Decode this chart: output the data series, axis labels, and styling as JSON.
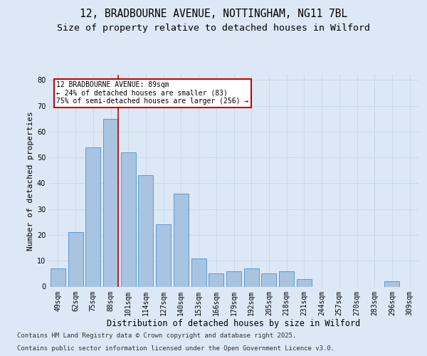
{
  "title_line1": "12, BRADBOURNE AVENUE, NOTTINGHAM, NG11 7BL",
  "title_line2": "Size of property relative to detached houses in Wilford",
  "xlabel": "Distribution of detached houses by size in Wilford",
  "ylabel": "Number of detached properties",
  "categories": [
    "49sqm",
    "62sqm",
    "75sqm",
    "88sqm",
    "101sqm",
    "114sqm",
    "127sqm",
    "140sqm",
    "153sqm",
    "166sqm",
    "179sqm",
    "192sqm",
    "205sqm",
    "218sqm",
    "231sqm",
    "244sqm",
    "257sqm",
    "270sqm",
    "283sqm",
    "296sqm",
    "309sqm"
  ],
  "values": [
    7,
    21,
    54,
    65,
    52,
    43,
    24,
    36,
    11,
    5,
    6,
    7,
    5,
    6,
    3,
    0,
    0,
    0,
    0,
    2,
    0
  ],
  "bar_color": "#a8c4e0",
  "bar_edge_color": "#5b9bd5",
  "annotation_line1": "12 BRADBOURNE AVENUE: 89sqm",
  "annotation_line2": "← 24% of detached houses are smaller (83)",
  "annotation_line3": "75% of semi-detached houses are larger (256) →",
  "annotation_box_color": "#ffffff",
  "annotation_box_edge_color": "#cc0000",
  "red_line_color": "#cc0000",
  "ylim": [
    0,
    82
  ],
  "yticks": [
    0,
    10,
    20,
    30,
    40,
    50,
    60,
    70,
    80
  ],
  "grid_color": "#c8d8ec",
  "background_color": "#dce8f5",
  "footer_line1": "Contains HM Land Registry data © Crown copyright and database right 2025.",
  "footer_line2": "Contains public sector information licensed under the Open Government Licence v3.0.",
  "title_fontsize": 10.5,
  "subtitle_fontsize": 9.5,
  "axis_label_fontsize": 8,
  "tick_fontsize": 7,
  "annot_fontsize": 7,
  "footer_fontsize": 6.5
}
